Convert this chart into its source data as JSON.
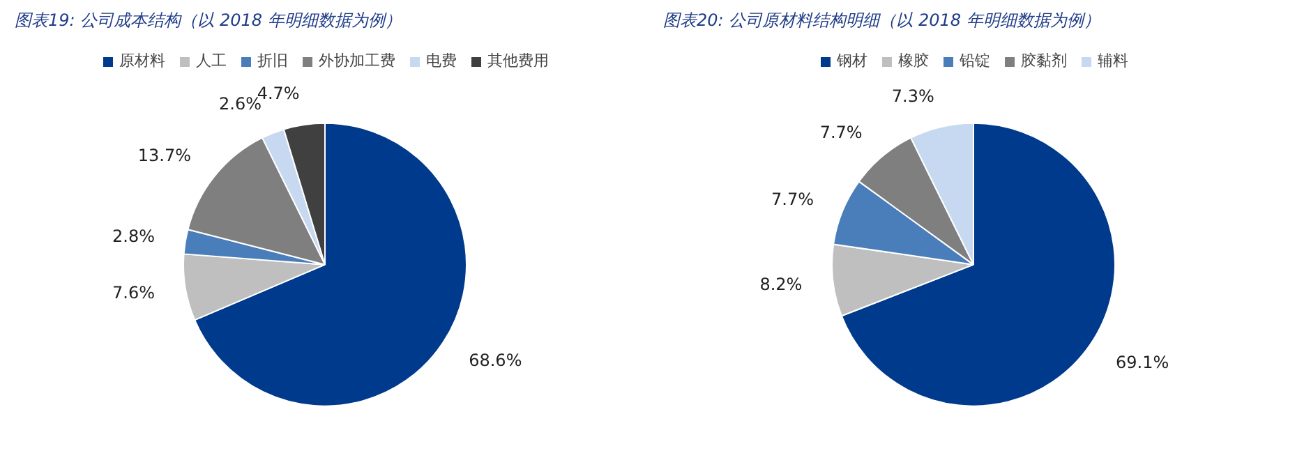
{
  "chart_data": [
    {
      "type": "pie",
      "title": "图表19:  公司成本结构（以 2018 年明细数据为例）",
      "categories": [
        "原材料",
        "人工",
        "折旧",
        "外协加工费",
        "电费",
        "其他费用"
      ],
      "values": [
        68.6,
        7.6,
        2.8,
        13.7,
        2.6,
        4.7
      ],
      "colors": [
        "#003a8c",
        "#bfbfbf",
        "#4a7ebb",
        "#7f7f7f",
        "#c6d9f0",
        "#404040"
      ],
      "value_labels": [
        "68.6%",
        "7.6%",
        "2.8%",
        "13.7%",
        "2.6%",
        "4.7%"
      ],
      "legend": "top"
    },
    {
      "type": "pie",
      "title": "图表20:  公司原材料结构明细（以 2018 年明细数据为例）",
      "categories": [
        "钢材",
        "橡胶",
        "铅锭",
        "胶黏剂",
        "辅料"
      ],
      "values": [
        69.1,
        8.2,
        7.7,
        7.7,
        7.3
      ],
      "colors": [
        "#003a8c",
        "#bfbfbf",
        "#4a7ebb",
        "#7f7f7f",
        "#c6d9f0"
      ],
      "value_labels": [
        "69.1%",
        "8.2%",
        "7.7%",
        "7.7%",
        "7.3%"
      ],
      "legend": "top"
    }
  ]
}
